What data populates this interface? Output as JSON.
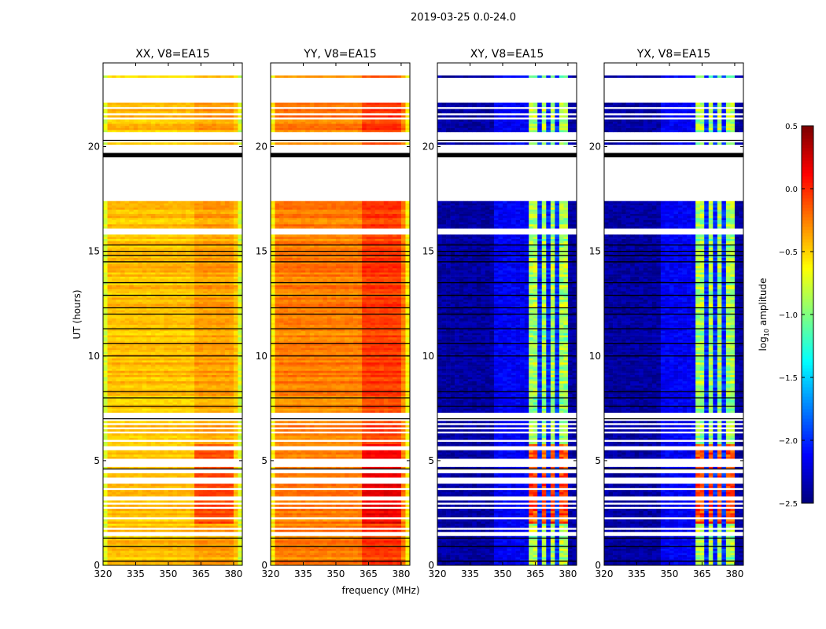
{
  "chart_data": {
    "type": "heatmap",
    "title": "2019-03-25 0.0-24.0",
    "xlabel": "frequency (MHz)",
    "ylabel": "UT (hours)",
    "xlim": [
      320,
      384
    ],
    "ylim": [
      0,
      24
    ],
    "xticks": [
      320,
      335,
      350,
      365,
      380
    ],
    "yticks": [
      0,
      5,
      10,
      15,
      20
    ],
    "colorbar": {
      "label_main": "log",
      "label_sub": "10",
      "label_rest": " amplitude",
      "range": [
        -2.5,
        0.5
      ],
      "ticks": [
        0.5,
        0.0,
        -0.5,
        -1.0,
        -1.5,
        -2.0,
        -2.5
      ],
      "tick_labels": [
        "0.5",
        "0.0",
        "−0.5",
        "−1.0",
        "−1.5",
        "−2.0",
        "−2.5"
      ],
      "colormap": "jet"
    },
    "time_segments": [
      {
        "from": 0.0,
        "to": 1.4,
        "state": "data"
      },
      {
        "from": 1.4,
        "to": 1.6,
        "state": "flagged"
      },
      {
        "from": 1.6,
        "to": 7.45,
        "state": "sparse"
      },
      {
        "from": 7.45,
        "to": 15.8,
        "state": "data"
      },
      {
        "from": 15.8,
        "to": 16.1,
        "state": "sparse"
      },
      {
        "from": 16.1,
        "to": 17.45,
        "state": "data"
      },
      {
        "from": 17.45,
        "to": 19.5,
        "state": "flagged"
      },
      {
        "from": 19.5,
        "to": 19.7,
        "state": "black"
      },
      {
        "from": 19.7,
        "to": 20.0,
        "state": "flagged"
      },
      {
        "from": 20.0,
        "to": 22.2,
        "state": "sparse"
      },
      {
        "from": 22.2,
        "to": 23.3,
        "state": "flagged"
      },
      {
        "from": 23.3,
        "to": 23.4,
        "state": "data"
      },
      {
        "from": 23.4,
        "to": 24.0,
        "state": "flagged"
      }
    ],
    "black_lines_ut": [
      0.2,
      0.9,
      1.3,
      4.6,
      7.0,
      7.6,
      8.0,
      8.3,
      10.0,
      10.6,
      11.3,
      12.0,
      12.3,
      12.9,
      13.5,
      14.5,
      14.8,
      15.0,
      15.3,
      20.3
    ],
    "band_mhz": [
      362,
      380
    ],
    "band_gaps_mhz": [
      [
        366,
        367
      ],
      [
        370.5,
        371.5
      ],
      [
        375,
        376
      ]
    ],
    "series": [
      {
        "name": "XX, V8=EA15",
        "kind": "parallel",
        "base_level": -0.45,
        "band_level": -0.35,
        "early_band_level": -0.1,
        "edge_level": -0.75
      },
      {
        "name": "YY, V8=EA15",
        "kind": "parallel",
        "base_level": -0.25,
        "band_level": -0.05,
        "early_band_level": 0.15,
        "edge_level": -0.6
      },
      {
        "name": "XY, V8=EA15",
        "kind": "cross",
        "base_level": -2.4,
        "band_level": -0.9,
        "early_band_level": -0.1,
        "edge_level": -2.4
      },
      {
        "name": "YX, V8=EA15",
        "kind": "cross",
        "base_level": -2.4,
        "band_level": -0.9,
        "early_band_level": -0.1,
        "edge_level": -2.4
      }
    ]
  }
}
